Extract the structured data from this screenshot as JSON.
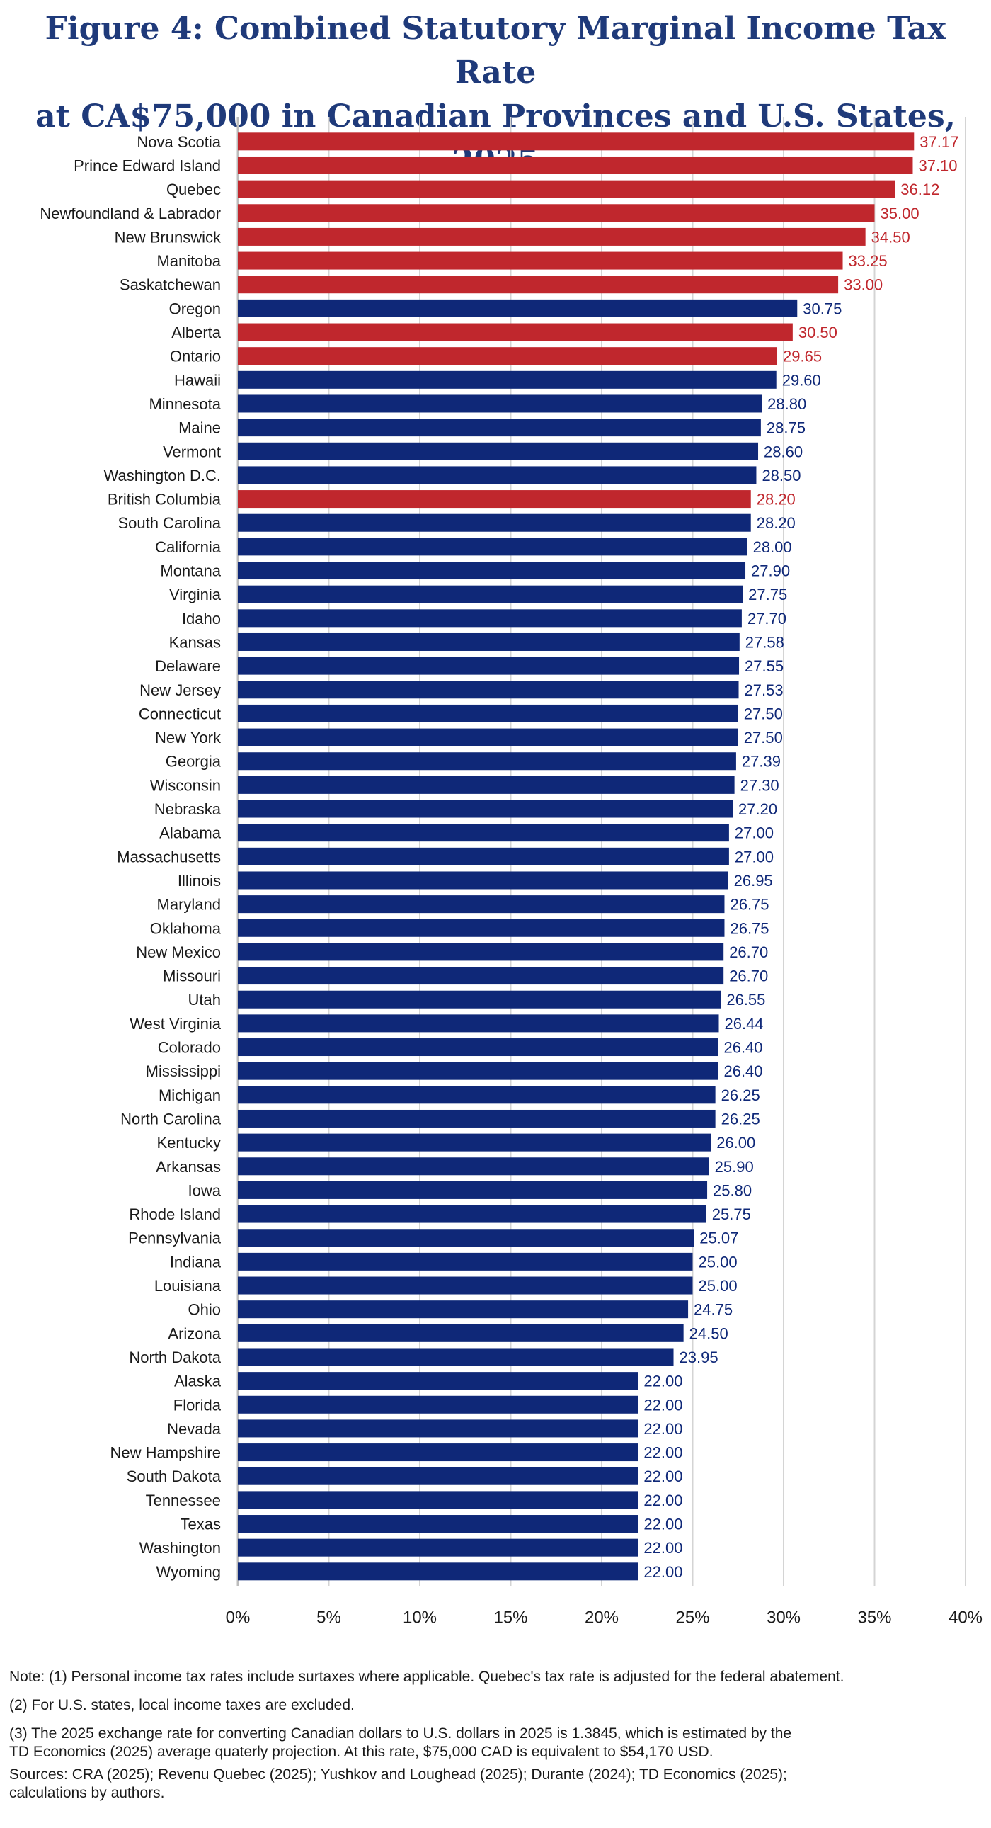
{
  "title_line1": "Figure 4: Combined Statutory Marginal Income Tax Rate",
  "title_line2": "at CA$75,000 in Canadian Provinces and U.S. States, 2025",
  "colors": {
    "canada": "#c0272d",
    "us": "#0f2878",
    "title": "#1f3a7a"
  },
  "notes": {
    "note1": "Note: (1) Personal income tax rates include surtaxes where applicable. Quebec's tax rate is adjusted for the federal abatement.",
    "note2": "(2) For U.S. states, local income taxes are excluded.",
    "note3a": "(3) The 2025 exchange rate for converting Canadian dollars to U.S. dollars in 2025 is 1.3845, which is estimated by the",
    "note3b": "TD Economics (2025) average quaterly  projection. At this rate, $75,000 CAD is equivalent to $54,170 USD.",
    "sources_a": "Sources: CRA (2025); Revenu Quebec (2025); Yushkov and Loughead (2025); Durante (2024); TD Economics (2025);",
    "sources_b": "calculations by authors."
  },
  "chart_data": {
    "type": "bar",
    "orientation": "horizontal",
    "xlim": [
      0,
      40
    ],
    "x_ticks": [
      "0%",
      "5%",
      "10%",
      "15%",
      "20%",
      "25%",
      "30%",
      "35%",
      "40%"
    ],
    "grid": true,
    "categories": [
      "Nova Scotia",
      "Prince Edward Island",
      "Quebec",
      "Newfoundland & Labrador",
      "New Brunswick",
      "Manitoba",
      "Saskatchewan",
      "Oregon",
      "Alberta",
      "Ontario",
      "Hawaii",
      "Minnesota",
      "Maine",
      "Vermont",
      "Washington D.C.",
      "British Columbia",
      "South Carolina",
      "California",
      "Montana",
      "Virginia",
      "Idaho",
      "Kansas",
      "Delaware",
      "New Jersey",
      "Connecticut",
      "New York",
      "Georgia",
      "Wisconsin",
      "Nebraska",
      "Alabama",
      "Massachusetts",
      "Illinois",
      "Maryland",
      "Oklahoma",
      "New Mexico",
      "Missouri",
      "Utah",
      "West Virginia",
      "Colorado",
      "Mississippi",
      "Michigan",
      "North Carolina",
      "Kentucky",
      "Arkansas",
      "Iowa",
      "Rhode Island",
      "Pennsylvania",
      "Indiana",
      "Louisiana",
      "Ohio",
      "Arizona",
      "North Dakota",
      "Alaska",
      "Florida",
      "Nevada",
      "New Hampshire",
      "South Dakota",
      "Tennessee",
      "Texas",
      "Washington",
      "Wyoming"
    ],
    "values": [
      37.17,
      37.1,
      36.12,
      35.0,
      34.5,
      33.25,
      33.0,
      30.75,
      30.5,
      29.65,
      29.6,
      28.8,
      28.75,
      28.6,
      28.5,
      28.2,
      28.2,
      28.0,
      27.9,
      27.75,
      27.7,
      27.58,
      27.55,
      27.53,
      27.5,
      27.5,
      27.39,
      27.3,
      27.2,
      27.0,
      27.0,
      26.95,
      26.75,
      26.75,
      26.7,
      26.7,
      26.55,
      26.44,
      26.4,
      26.4,
      26.25,
      26.25,
      26.0,
      25.9,
      25.8,
      25.75,
      25.07,
      25.0,
      25.0,
      24.75,
      24.5,
      23.95,
      22.0,
      22.0,
      22.0,
      22.0,
      22.0,
      22.0,
      22.0,
      22.0,
      22.0
    ],
    "value_labels": [
      "37.17",
      "37.10",
      "36.12",
      "35.00",
      "34.50",
      "33.25",
      "33.00",
      "30.75",
      "30.50",
      "29.65",
      "29.60",
      "28.80",
      "28.75",
      "28.60",
      "28.50",
      "28.20",
      "28.20",
      "28.00",
      "27.90",
      "27.75",
      "27.70",
      "27.58",
      "27.55",
      "27.53",
      "27.50",
      "27.50",
      "27.39",
      "27.30",
      "27.20",
      "27.00",
      "27.00",
      "26.95",
      "26.75",
      "26.75",
      "26.70",
      "26.70",
      "26.55",
      "26.44",
      "26.40",
      "26.40",
      "26.25",
      "26.25",
      "26.00",
      "25.90",
      "25.80",
      "25.75",
      "25.07",
      "25.00",
      "25.00",
      "24.75",
      "24.50",
      "23.95",
      "22.00",
      "22.00",
      "22.00",
      "22.00",
      "22.00",
      "22.00",
      "22.00",
      "22.00",
      "22.00"
    ],
    "groups": [
      "canada",
      "canada",
      "canada",
      "canada",
      "canada",
      "canada",
      "canada",
      "us",
      "canada",
      "canada",
      "us",
      "us",
      "us",
      "us",
      "us",
      "canada",
      "us",
      "us",
      "us",
      "us",
      "us",
      "us",
      "us",
      "us",
      "us",
      "us",
      "us",
      "us",
      "us",
      "us",
      "us",
      "us",
      "us",
      "us",
      "us",
      "us",
      "us",
      "us",
      "us",
      "us",
      "us",
      "us",
      "us",
      "us",
      "us",
      "us",
      "us",
      "us",
      "us",
      "us",
      "us",
      "us",
      "us",
      "us",
      "us",
      "us",
      "us",
      "us",
      "us",
      "us",
      "us"
    ]
  }
}
